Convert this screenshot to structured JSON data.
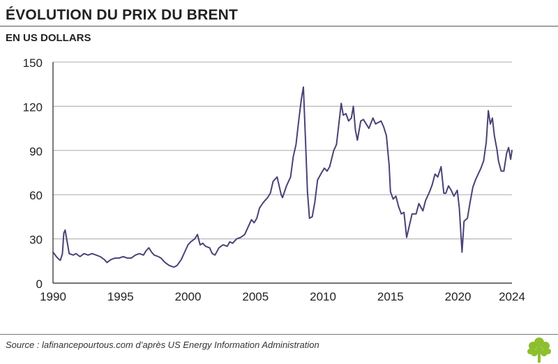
{
  "header": {
    "title": "ÉVOLUTION DU PRIX DU BRENT",
    "subtitle": "EN US DOLLARS"
  },
  "footer": {
    "source": "Source : lafinancepourtous.com d’après US Energy Information Administration"
  },
  "colors": {
    "line": "#4a4275",
    "grid": "#a8a8a8",
    "axis": "#222222",
    "logo": "#8cbf2e"
  },
  "chart_data": {
    "type": "line",
    "title": "ÉVOLUTION DU PRIX DU BRENT",
    "ylabel": "EN US DOLLARS",
    "xlabel": "",
    "xlim": [
      1990,
      2024
    ],
    "ylim": [
      0,
      150
    ],
    "x_ticks": [
      1990,
      1995,
      2000,
      2005,
      2010,
      2015,
      2020,
      2024
    ],
    "x_tick_labels": [
      "1990",
      "1995",
      "2000",
      "2005",
      "2010",
      "2015",
      "2020",
      "2024"
    ],
    "y_ticks": [
      0,
      30,
      60,
      90,
      120,
      150
    ],
    "y_tick_labels": [
      "0",
      "30",
      "60",
      "90",
      "120",
      "150"
    ],
    "grid": "horizontal",
    "series": [
      {
        "name": "Brent",
        "x": [
          1990.0,
          1990.25,
          1990.45,
          1990.55,
          1990.7,
          1990.8,
          1990.9,
          1991.05,
          1991.2,
          1991.5,
          1991.7,
          1992.0,
          1992.3,
          1992.6,
          1992.9,
          1993.2,
          1993.5,
          1993.8,
          1994.0,
          1994.3,
          1994.6,
          1994.9,
          1995.2,
          1995.5,
          1995.8,
          1996.1,
          1996.4,
          1996.7,
          1996.9,
          1997.1,
          1997.3,
          1997.5,
          1997.8,
          1998.0,
          1998.3,
          1998.6,
          1998.9,
          1999.0,
          1999.2,
          1999.5,
          1999.8,
          2000.0,
          2000.2,
          2000.5,
          2000.7,
          2000.9,
          2001.1,
          2001.3,
          2001.6,
          2001.8,
          2002.0,
          2002.3,
          2002.6,
          2002.9,
          2003.1,
          2003.3,
          2003.6,
          2003.9,
          2004.2,
          2004.5,
          2004.7,
          2004.9,
          2005.1,
          2005.3,
          2005.6,
          2005.9,
          2006.1,
          2006.3,
          2006.6,
          2006.9,
          2007.0,
          2007.3,
          2007.6,
          2007.8,
          2008.0,
          2008.2,
          2008.4,
          2008.55,
          2008.7,
          2008.85,
          2009.0,
          2009.2,
          2009.4,
          2009.6,
          2009.9,
          2010.1,
          2010.3,
          2010.5,
          2010.8,
          2011.0,
          2011.2,
          2011.35,
          2011.5,
          2011.7,
          2011.9,
          2012.1,
          2012.25,
          2012.4,
          2012.55,
          2012.8,
          2013.0,
          2013.2,
          2013.4,
          2013.7,
          2013.9,
          2014.1,
          2014.3,
          2014.5,
          2014.7,
          2014.9,
          2015.0,
          2015.2,
          2015.4,
          2015.6,
          2015.8,
          2016.0,
          2016.2,
          2016.4,
          2016.6,
          2016.9,
          2017.1,
          2017.4,
          2017.6,
          2017.9,
          2018.1,
          2018.3,
          2018.5,
          2018.75,
          2018.95,
          2019.1,
          2019.3,
          2019.5,
          2019.7,
          2019.95,
          2020.1,
          2020.3,
          2020.45,
          2020.7,
          2020.9,
          2021.1,
          2021.3,
          2021.5,
          2021.7,
          2021.9,
          2022.1,
          2022.25,
          2022.4,
          2022.55,
          2022.7,
          2022.9,
          2023.0,
          2023.2,
          2023.4,
          2023.6,
          2023.75,
          2023.9,
          2024.0
        ],
        "values": [
          21,
          18,
          16,
          15.5,
          20,
          34,
          36,
          28,
          20,
          19,
          20,
          18,
          20,
          19,
          20,
          19,
          18,
          16,
          14,
          16,
          17,
          17,
          18,
          17,
          17,
          19,
          20,
          19,
          22,
          24,
          21,
          19,
          18,
          17,
          14,
          12,
          11,
          11,
          12,
          16,
          22,
          26,
          28,
          30,
          33,
          26,
          27,
          25,
          24,
          20,
          19,
          24,
          26,
          25,
          28,
          27,
          30,
          31,
          33,
          39,
          43,
          41,
          44,
          51,
          55,
          58,
          61,
          69,
          72,
          60,
          58,
          66,
          72,
          86,
          94,
          110,
          125,
          133,
          98,
          62,
          44,
          45,
          55,
          70,
          75,
          78,
          76,
          79,
          90,
          94,
          110,
          122,
          114,
          115,
          110,
          112,
          120,
          104,
          97,
          110,
          111,
          108,
          105,
          112,
          108,
          109,
          110,
          106,
          100,
          80,
          62,
          57,
          59,
          52,
          47,
          48,
          31,
          39,
          47,
          47,
          54,
          49,
          56,
          62,
          67,
          74,
          72,
          79,
          61,
          61,
          66,
          63,
          59,
          63,
          51,
          21,
          42,
          44,
          55,
          65,
          70,
          74,
          78,
          83,
          96,
          117,
          108,
          112,
          100,
          90,
          83,
          76,
          76,
          88,
          92,
          84,
          90
        ]
      }
    ]
  }
}
